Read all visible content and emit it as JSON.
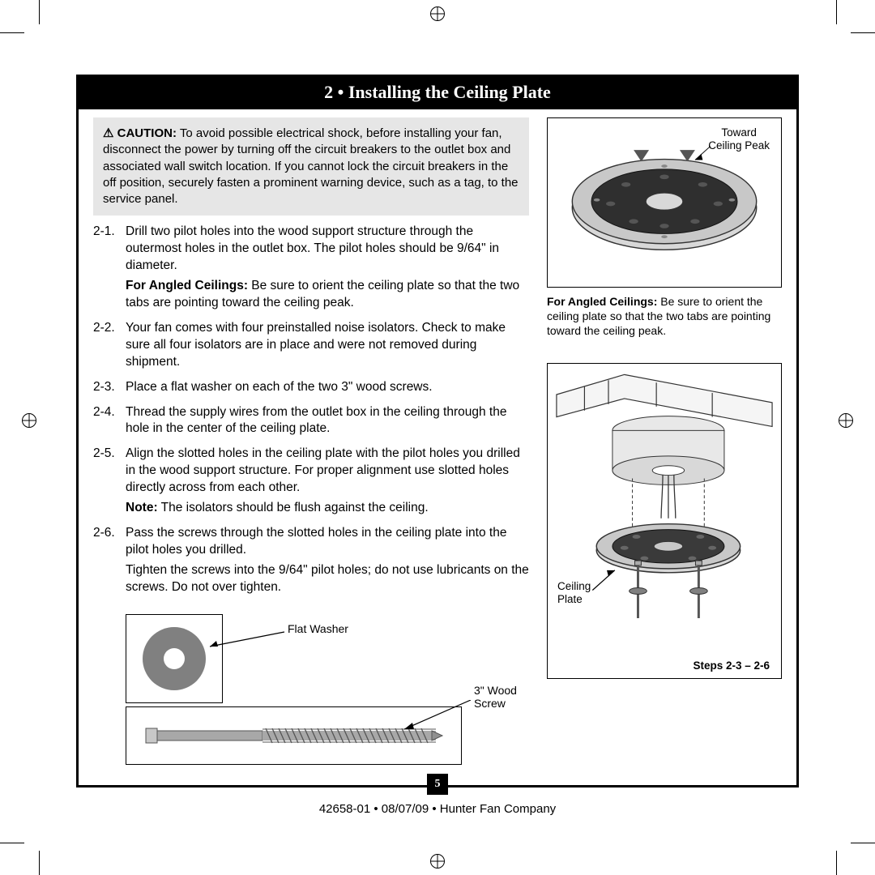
{
  "title": "2 • Installing the Ceiling Plate",
  "page_number": "5",
  "footer": "42658-01  •  08/07/09  •  Hunter Fan Company",
  "caution": {
    "icon": "⚠",
    "label": "CAUTION:",
    "text": "To avoid possible electrical shock, before installing your fan, disconnect the power by turning off the circuit breakers to the outlet box and associated wall switch location. If you cannot lock the circuit breakers in the off position, securely fasten a prominent warning device, such as a tag, to the service panel."
  },
  "steps": [
    {
      "num": "2-1.",
      "paras": [
        "Drill two pilot holes into the wood support structure through the outermost holes in the outlet box. The pilot holes should be 9/64\" in diameter.",
        {
          "bold": "For Angled Ceilings:",
          "rest": " Be sure to orient the ceiling plate so that the two tabs are pointing toward the ceiling peak."
        }
      ]
    },
    {
      "num": "2-2.",
      "paras": [
        "Your fan comes with four preinstalled noise isolators. Check to make sure all four isolators are in place and were not removed during shipment."
      ]
    },
    {
      "num": "2-3.",
      "paras": [
        "Place a flat washer on each of the two 3\" wood screws."
      ]
    },
    {
      "num": "2-4.",
      "paras": [
        "Thread the supply wires from the outlet box in the ceiling through the hole in the center of the ceiling plate."
      ]
    },
    {
      "num": "2-5.",
      "paras": [
        "Align the slotted holes in the ceiling plate with the pilot holes you drilled in the wood support structure. For proper alignment use slotted holes directly across from each other.",
        {
          "bold": "Note:",
          "rest": " The isolators should be flush against the ceiling."
        }
      ]
    },
    {
      "num": "2-6.",
      "paras": [
        "Pass the screws through the slotted holes in the ceiling plate into the pilot holes you drilled.",
        "Tighten the screws into the 9/64\" pilot holes; do not use lubricants on the screws. Do not over tighten."
      ]
    }
  ],
  "labels": {
    "flat_washer": "Flat Washer",
    "wood_screw_l1": "3\" Wood",
    "wood_screw_l2": "Screw",
    "toward_l1": "Toward",
    "toward_l2": "Ceiling Peak",
    "ceiling_plate_l1": "Ceiling",
    "ceiling_plate_l2": "Plate",
    "steps_ref": "Steps 2-3 – 2-6"
  },
  "fig1_caption": {
    "bold": "For Angled Ceilings:",
    "rest": " Be sure to orient the ceiling plate so that the two tabs are pointing toward the ceiling peak."
  },
  "colors": {
    "washer": "#808080",
    "plate_dark": "#3a3a3a",
    "plate_light": "#bfbfbf",
    "screw_body": "#a8a8a8",
    "screw_thread": "#6e6e6e"
  }
}
